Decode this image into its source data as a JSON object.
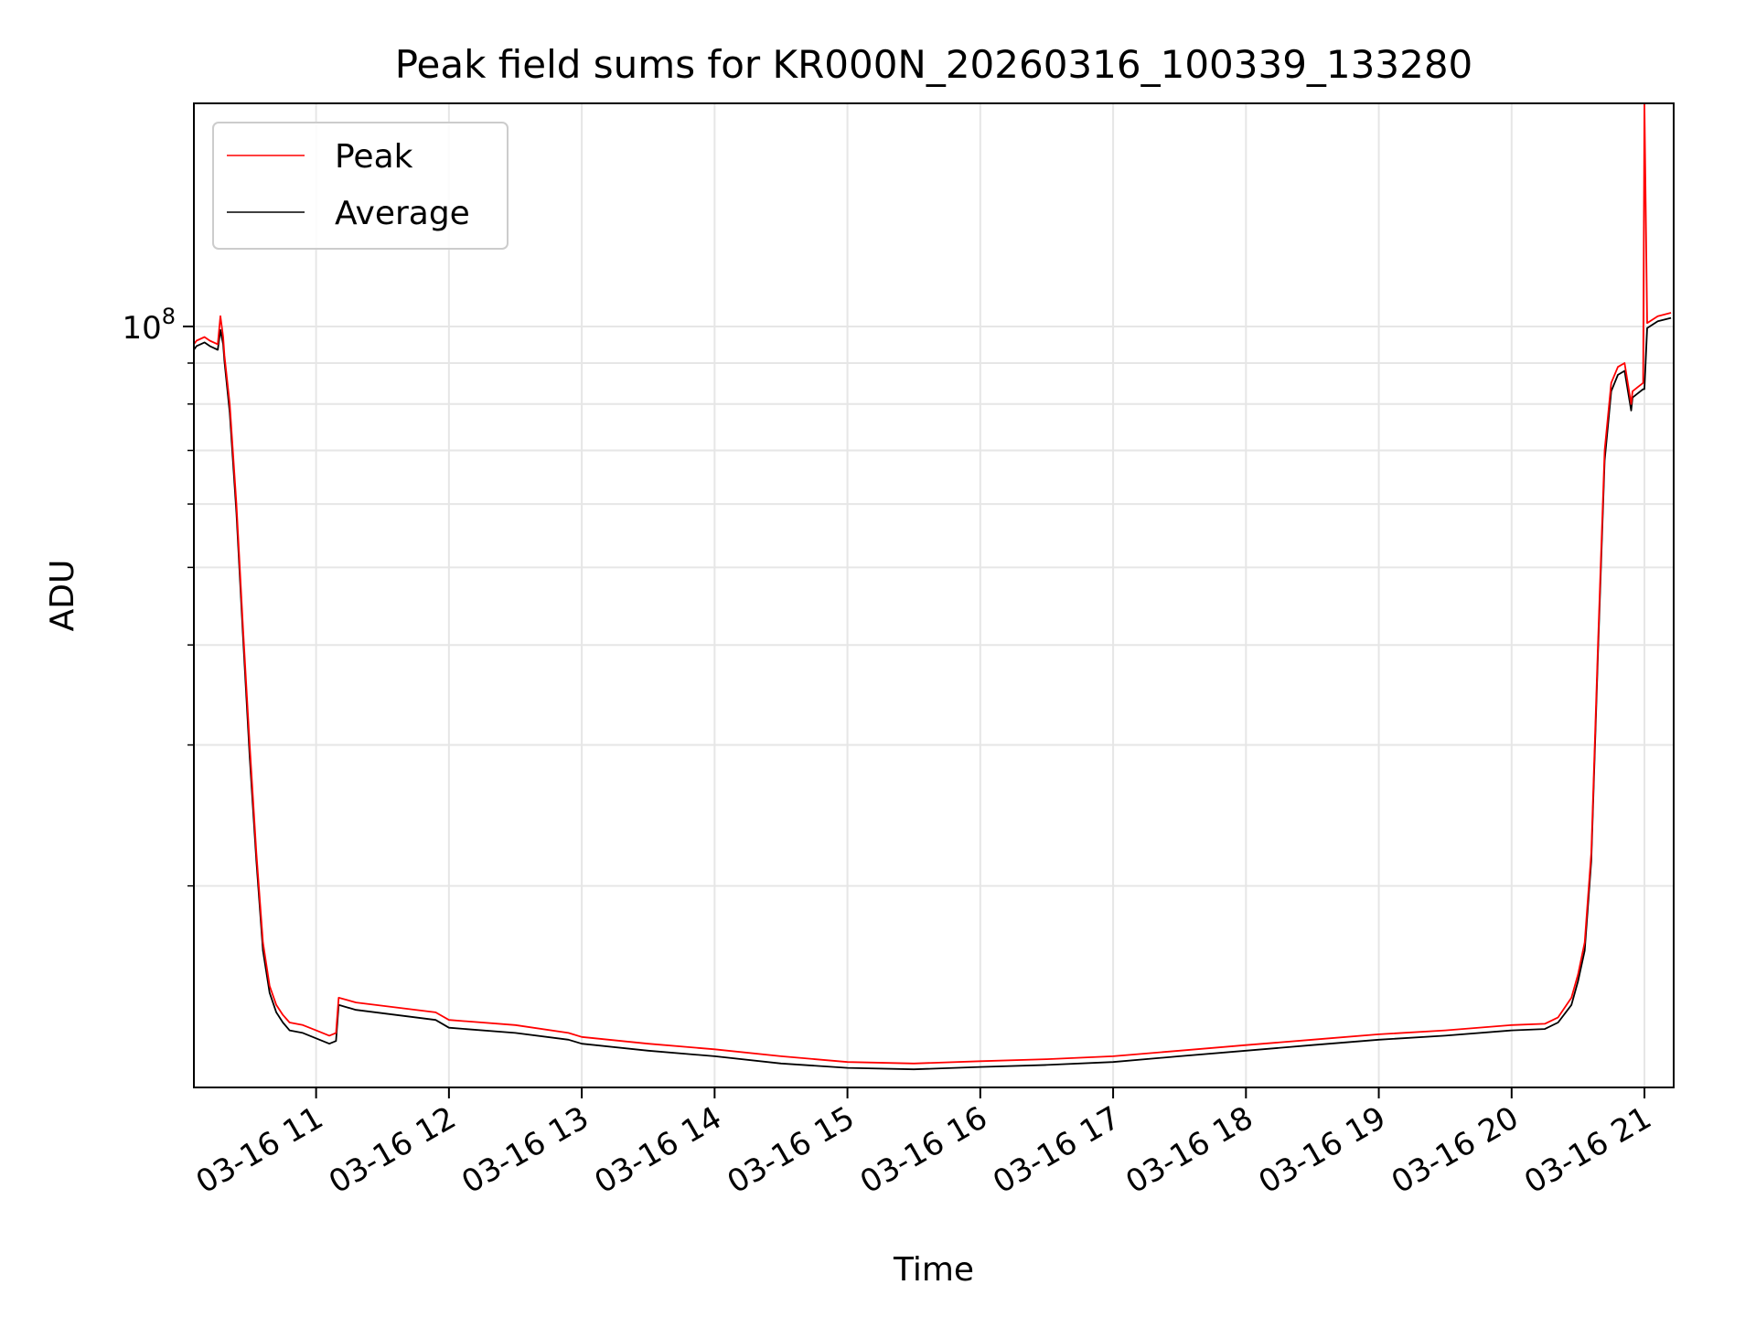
{
  "chart_data": {
    "type": "line",
    "title": "Peak field sums for KR000N_20260316_100339_133280",
    "xlabel": "Time",
    "ylabel": "ADU",
    "yscale": "log",
    "ylim": [
      11200000,
      190000000
    ],
    "xlim_hours": [
      10.08,
      21.22
    ],
    "grid": true,
    "legend_placement": "upper-left",
    "x_tick_labels": [
      "03-16 11",
      "03-16 12",
      "03-16 13",
      "03-16 14",
      "03-16 15",
      "03-16 16",
      "03-16 17",
      "03-16 18",
      "03-16 19",
      "03-16 20",
      "03-16 21"
    ],
    "x_tick_hours": [
      11,
      12,
      13,
      14,
      15,
      16,
      17,
      18,
      19,
      20,
      21
    ],
    "y_tick_labels": [
      {
        "base": "10",
        "exp": "8"
      }
    ],
    "y_tick_values": [
      100000000
    ],
    "series": [
      {
        "name": "Peak",
        "color": "#ff0000",
        "x_hours": [
          10.08,
          10.1,
          10.16,
          10.2,
          10.26,
          10.28,
          10.3,
          10.31,
          10.35,
          10.4,
          10.45,
          10.5,
          10.55,
          10.6,
          10.65,
          10.7,
          10.75,
          10.8,
          10.9,
          11.0,
          11.1,
          11.15,
          11.17,
          11.3,
          11.6,
          11.9,
          12.0,
          12.5,
          12.9,
          13.0,
          13.5,
          14.0,
          14.5,
          15.0,
          15.5,
          16.0,
          16.5,
          17.0,
          17.5,
          18.0,
          18.5,
          19.0,
          19.5,
          20.0,
          20.25,
          20.35,
          20.45,
          20.5,
          20.55,
          20.6,
          20.65,
          20.7,
          20.75,
          20.8,
          20.85,
          20.9,
          20.91,
          20.95,
          20.99,
          21.0,
          21.02,
          21.1,
          21.2
        ],
        "y": [
          95000000,
          96000000,
          97000000,
          96000000,
          95000000,
          103000000,
          97000000,
          92000000,
          80000000,
          60000000,
          42000000,
          30000000,
          22000000,
          17000000,
          15000000,
          14200000,
          13800000,
          13500000,
          13400000,
          13200000,
          13000000,
          13100000,
          14500000,
          14300000,
          14100000,
          13900000,
          13600000,
          13400000,
          13100000,
          12950000,
          12700000,
          12500000,
          12250000,
          12050000,
          12000000,
          12080000,
          12150000,
          12250000,
          12450000,
          12650000,
          12850000,
          13050000,
          13200000,
          13400000,
          13450000,
          13700000,
          14500000,
          15500000,
          17000000,
          22000000,
          40000000,
          70000000,
          85000000,
          89000000,
          90000000,
          80000000,
          83000000,
          84000000,
          85000000,
          190000000,
          101000000,
          103000000,
          104000000
        ]
      },
      {
        "name": "Average",
        "color": "#000000",
        "x_hours": [
          10.08,
          10.1,
          10.16,
          10.2,
          10.26,
          10.28,
          10.3,
          10.31,
          10.35,
          10.4,
          10.45,
          10.5,
          10.55,
          10.6,
          10.65,
          10.7,
          10.75,
          10.8,
          10.9,
          11.0,
          11.1,
          11.15,
          11.17,
          11.3,
          11.6,
          11.9,
          12.0,
          12.5,
          12.9,
          13.0,
          13.5,
          14.0,
          14.5,
          15.0,
          15.5,
          16.0,
          16.5,
          17.0,
          17.5,
          18.0,
          18.5,
          19.0,
          19.5,
          20.0,
          20.25,
          20.35,
          20.45,
          20.5,
          20.55,
          20.6,
          20.65,
          20.7,
          20.75,
          20.8,
          20.85,
          20.9,
          20.91,
          20.95,
          20.99,
          21.0,
          21.02,
          21.1,
          21.2
        ],
        "y": [
          93500000,
          94500000,
          95500000,
          94500000,
          93500000,
          99000000,
          95000000,
          90500000,
          78000000,
          58500000,
          41000000,
          29000000,
          21500000,
          16600000,
          14700000,
          13900000,
          13500000,
          13200000,
          13100000,
          12900000,
          12700000,
          12800000,
          14200000,
          14000000,
          13800000,
          13600000,
          13300000,
          13100000,
          12850000,
          12700000,
          12450000,
          12250000,
          12000000,
          11850000,
          11800000,
          11880000,
          11950000,
          12050000,
          12250000,
          12450000,
          12650000,
          12850000,
          13000000,
          13200000,
          13250000,
          13500000,
          14200000,
          15200000,
          16600000,
          21500000,
          39000000,
          68000000,
          83000000,
          87000000,
          88000000,
          78500000,
          81500000,
          82500000,
          83500000,
          83500000,
          99500000,
          101500000,
          102500000
        ]
      }
    ]
  }
}
